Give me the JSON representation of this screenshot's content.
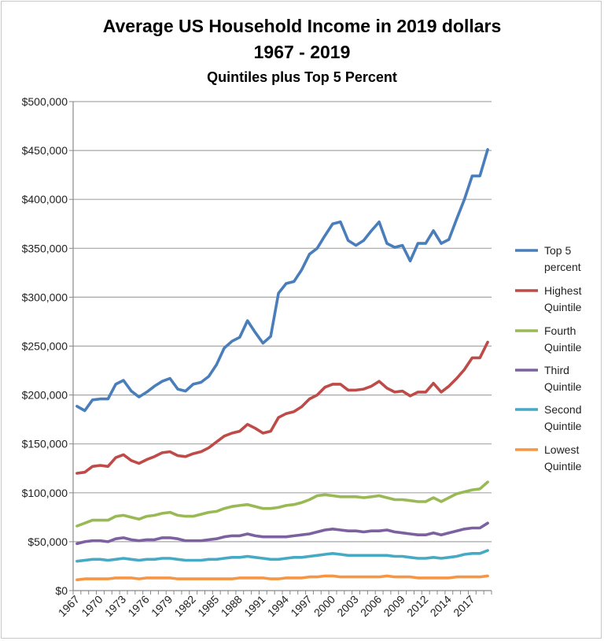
{
  "chart_data": {
    "type": "line",
    "title": "Average US Household Income in 2019 dollars",
    "subtitle": "1967 - 2019",
    "subtitle2": "Quintiles plus Top 5 Percent",
    "xlabel": "",
    "ylabel": "",
    "ylim": [
      0,
      500000
    ],
    "y_ticks": [
      "$0",
      "$50,000",
      "$100,000",
      "$150,000",
      "$200,000",
      "$250,000",
      "$300,000",
      "$350,000",
      "$400,000",
      "$450,000",
      "$500,000"
    ],
    "grid": "horizontal",
    "legend_position": "right",
    "categories": [
      "1967",
      "1968",
      "1969",
      "1970",
      "1971",
      "1972",
      "1973",
      "1974",
      "1975",
      "1976",
      "1977",
      "1978",
      "1979",
      "1980",
      "1981",
      "1982",
      "1983",
      "1984",
      "1985",
      "1986",
      "1987",
      "1988",
      "1989",
      "1990",
      "1991",
      "1992",
      "1993",
      "1994",
      "1995",
      "1996",
      "1997",
      "1998",
      "1999",
      "2000",
      "2001",
      "2002",
      "2003",
      "2004",
      "2005",
      "2006",
      "2007",
      "2008",
      "2009",
      "2010",
      "2011",
      "2012",
      "2013",
      "2013",
      "2014",
      "2015",
      "2016",
      "2017",
      "2018",
      "2019"
    ],
    "x_tick_labels": [
      "1967",
      "1970",
      "1973",
      "1976",
      "1979",
      "1982",
      "1985",
      "1988",
      "1991",
      "1994",
      "1997",
      "2000",
      "2003",
      "2006",
      "2009",
      "2012",
      "2014",
      "2017"
    ],
    "series": [
      {
        "name": "Top 5 percent",
        "name_lines": [
          "Top 5",
          "percent"
        ],
        "color": "#4A7EBB",
        "values": [
          188500,
          184000,
          195000,
          196000,
          196000,
          211000,
          215000,
          204000,
          198000,
          203000,
          209000,
          214000,
          217000,
          206000,
          204000,
          211000,
          213000,
          219000,
          231000,
          248000,
          255000,
          259000,
          276000,
          264000,
          253000,
          260000,
          304000,
          314000,
          316000,
          328000,
          344000,
          350000,
          363000,
          375000,
          377000,
          358000,
          353000,
          358000,
          368000,
          377000,
          355000,
          351000,
          353000,
          337000,
          355000,
          355000,
          368000,
          355000,
          359000,
          380000,
          400000,
          424000,
          424000,
          451000
        ]
      },
      {
        "name": "Highest Quintile",
        "name_lines": [
          "Highest",
          "Quintile"
        ],
        "color": "#BE4B48",
        "values": [
          120000,
          121000,
          127000,
          128000,
          127000,
          136000,
          139000,
          133000,
          130000,
          134000,
          137000,
          141000,
          142000,
          138000,
          137000,
          140000,
          142000,
          146000,
          152000,
          158000,
          161000,
          163000,
          170000,
          166000,
          161000,
          163000,
          177000,
          181000,
          183000,
          188000,
          196000,
          200000,
          208000,
          211000,
          211000,
          205000,
          205000,
          206000,
          209000,
          214000,
          207000,
          203000,
          204000,
          199000,
          203000,
          203000,
          212000,
          203000,
          209000,
          217000,
          226000,
          238000,
          238000,
          254000
        ]
      },
      {
        "name": "Fourth Quintile",
        "name_lines": [
          "Fourth",
          "Quintile"
        ],
        "color": "#98B954",
        "values": [
          66000,
          69000,
          72000,
          72000,
          72000,
          76000,
          77000,
          75000,
          73000,
          76000,
          77000,
          79000,
          80000,
          77000,
          76000,
          76000,
          78000,
          80000,
          81000,
          84000,
          86000,
          87000,
          88000,
          86000,
          84000,
          84000,
          85000,
          87000,
          88000,
          90000,
          93000,
          97000,
          98000,
          97000,
          96000,
          96000,
          96000,
          95000,
          96000,
          97000,
          95000,
          93000,
          93000,
          92000,
          91000,
          91000,
          95000,
          91000,
          95000,
          99000,
          101000,
          103000,
          104000,
          111000
        ]
      },
      {
        "name": "Third Quintile",
        "name_lines": [
          "Third",
          "Quintile"
        ],
        "color": "#7D60A0",
        "values": [
          48000,
          50000,
          51000,
          51000,
          50000,
          53000,
          54000,
          52000,
          51000,
          52000,
          52000,
          54000,
          54000,
          53000,
          51000,
          51000,
          51000,
          52000,
          53000,
          55000,
          56000,
          56000,
          58000,
          56000,
          55000,
          55000,
          55000,
          55000,
          56000,
          57000,
          58000,
          60000,
          62000,
          63000,
          62000,
          61000,
          61000,
          60000,
          61000,
          61000,
          62000,
          60000,
          59000,
          58000,
          57000,
          57000,
          59000,
          57000,
          59000,
          61000,
          63000,
          64000,
          64000,
          69000
        ]
      },
      {
        "name": "Second Quintile",
        "name_lines": [
          "Second",
          "Quintile"
        ],
        "color": "#46AAC5",
        "values": [
          30000,
          31000,
          32000,
          32000,
          31000,
          32000,
          33000,
          32000,
          31000,
          32000,
          32000,
          33000,
          33000,
          32000,
          31000,
          31000,
          31000,
          32000,
          32000,
          33000,
          34000,
          34000,
          35000,
          34000,
          33000,
          32000,
          32000,
          33000,
          34000,
          34000,
          35000,
          36000,
          37000,
          38000,
          37000,
          36000,
          36000,
          36000,
          36000,
          36000,
          36000,
          35000,
          35000,
          34000,
          33000,
          33000,
          34000,
          33000,
          34000,
          35000,
          37000,
          38000,
          38000,
          41000
        ]
      },
      {
        "name": "Lowest Quintile",
        "name_lines": [
          "Lowest",
          "Quintile"
        ],
        "color": "#F69544",
        "values": [
          11000,
          12000,
          12000,
          12000,
          12000,
          13000,
          13000,
          13000,
          12000,
          13000,
          13000,
          13000,
          13000,
          12000,
          12000,
          12000,
          12000,
          12000,
          12000,
          12000,
          12000,
          13000,
          13000,
          13000,
          13000,
          12000,
          12000,
          13000,
          13000,
          13000,
          14000,
          14000,
          15000,
          15000,
          14000,
          14000,
          14000,
          14000,
          14000,
          14000,
          15000,
          14000,
          14000,
          14000,
          13000,
          13000,
          13000,
          13000,
          13000,
          14000,
          14000,
          14000,
          14000,
          15000
        ]
      }
    ]
  }
}
